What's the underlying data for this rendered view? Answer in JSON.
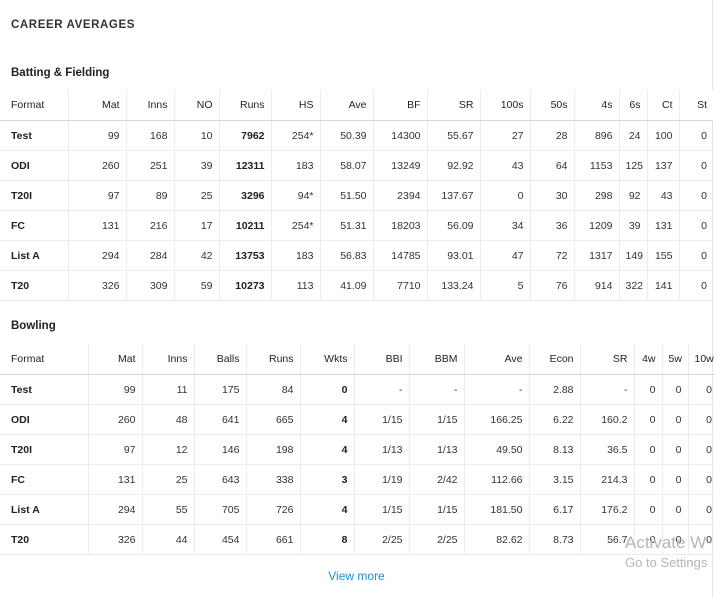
{
  "title": "CAREER AVERAGES",
  "batting": {
    "heading": "Batting & Fielding",
    "columns": [
      "Format",
      "Mat",
      "Inns",
      "NO",
      "Runs",
      "HS",
      "Ave",
      "BF",
      "SR",
      "100s",
      "50s",
      "4s",
      "6s",
      "Ct",
      "St"
    ],
    "rows": [
      [
        "Test",
        "99",
        "168",
        "10",
        "7962",
        "254*",
        "50.39",
        "14300",
        "55.67",
        "27",
        "28",
        "896",
        "24",
        "100",
        "0"
      ],
      [
        "ODI",
        "260",
        "251",
        "39",
        "12311",
        "183",
        "58.07",
        "13249",
        "92.92",
        "43",
        "64",
        "1153",
        "125",
        "137",
        "0"
      ],
      [
        "T20I",
        "97",
        "89",
        "25",
        "3296",
        "94*",
        "51.50",
        "2394",
        "137.67",
        "0",
        "30",
        "298",
        "92",
        "43",
        "0"
      ],
      [
        "FC",
        "131",
        "216",
        "17",
        "10211",
        "254*",
        "51.31",
        "18203",
        "56.09",
        "34",
        "36",
        "1209",
        "39",
        "131",
        "0"
      ],
      [
        "List A",
        "294",
        "284",
        "42",
        "13753",
        "183",
        "56.83",
        "14785",
        "93.01",
        "47",
        "72",
        "1317",
        "149",
        "155",
        "0"
      ],
      [
        "T20",
        "326",
        "309",
        "59",
        "10273",
        "113",
        "41.09",
        "7710",
        "133.24",
        "5",
        "76",
        "914",
        "322",
        "141",
        "0"
      ]
    ]
  },
  "bowling": {
    "heading": "Bowling",
    "columns": [
      "Format",
      "Mat",
      "Inns",
      "Balls",
      "Runs",
      "Wkts",
      "BBI",
      "BBM",
      "Ave",
      "Econ",
      "SR",
      "4w",
      "5w",
      "10w"
    ],
    "rows": [
      [
        "Test",
        "99",
        "11",
        "175",
        "84",
        "0",
        "-",
        "-",
        "-",
        "2.88",
        "-",
        "0",
        "0",
        "0"
      ],
      [
        "ODI",
        "260",
        "48",
        "641",
        "665",
        "4",
        "1/15",
        "1/15",
        "166.25",
        "6.22",
        "160.2",
        "0",
        "0",
        "0"
      ],
      [
        "T20I",
        "97",
        "12",
        "146",
        "198",
        "4",
        "1/13",
        "1/13",
        "49.50",
        "8.13",
        "36.5",
        "0",
        "0",
        "0"
      ],
      [
        "FC",
        "131",
        "25",
        "643",
        "338",
        "3",
        "1/19",
        "2/42",
        "112.66",
        "3.15",
        "214.3",
        "0",
        "0",
        "0"
      ],
      [
        "List A",
        "294",
        "55",
        "705",
        "726",
        "4",
        "1/15",
        "1/15",
        "181.50",
        "6.17",
        "176.2",
        "0",
        "0",
        "0"
      ],
      [
        "T20",
        "326",
        "44",
        "454",
        "661",
        "8",
        "2/25",
        "2/25",
        "82.62",
        "8.73",
        "56.7",
        "0",
        "0",
        "0"
      ]
    ]
  },
  "view_more": "View more",
  "watermark": {
    "line1": "Activate W",
    "line2": "Go to Settings"
  },
  "colors": {
    "link": "#1e8fd0"
  }
}
